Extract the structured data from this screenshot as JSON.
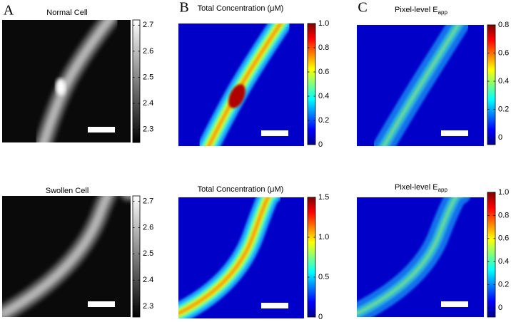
{
  "chart_data": [
    {
      "type": "heatmap",
      "panel_label": "A",
      "title": "Normal Cell",
      "colormap": "gray",
      "clim": [
        2.25,
        2.72
      ],
      "cticks": [
        2.3,
        2.4,
        2.5,
        2.6,
        2.7
      ]
    },
    {
      "type": "heatmap",
      "panel_label": "B",
      "title": "Total Concentration (μM)",
      "colormap": "jet",
      "clim": [
        0,
        1
      ],
      "cticks": [
        0,
        0.2,
        0.4,
        0.6,
        0.8,
        {
          "value": 1,
          "label": "1.0"
        }
      ]
    },
    {
      "type": "heatmap",
      "panel_label": "C",
      "title": "Pixel-level E",
      "title_subscript": "app",
      "colormap": "jet",
      "clim": [
        -0.05,
        0.8
      ],
      "cticks": [
        0,
        0.2,
        0.4,
        0.6,
        0.8
      ]
    },
    {
      "type": "heatmap",
      "title": "Swollen Cell",
      "colormap": "gray",
      "clim": [
        2.26,
        2.72
      ],
      "cticks": [
        2.3,
        2.4,
        2.5,
        2.6,
        2.7
      ]
    },
    {
      "type": "heatmap",
      "title": "Total Concentration (μM)",
      "colormap": "jet",
      "clim": [
        0,
        1.5
      ],
      "cticks": [
        0,
        0.5,
        {
          "value": 1,
          "label": "1.0"
        },
        1.5
      ]
    },
    {
      "type": "heatmap",
      "title": "Pixel-level E",
      "title_subscript": "app",
      "colormap": "jet",
      "clim": [
        -0.08,
        1
      ],
      "cticks": [
        0,
        0.2,
        0.4,
        0.6,
        0.8,
        {
          "value": 1,
          "label": "1.0"
        }
      ]
    }
  ]
}
